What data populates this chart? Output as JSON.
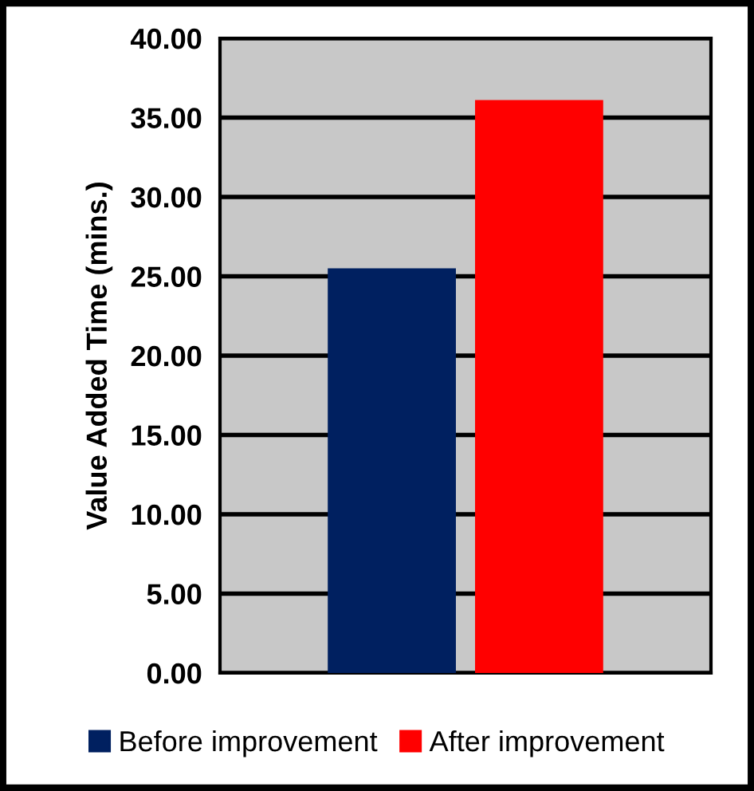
{
  "chart_data": {
    "type": "bar",
    "ylabel": "Value Added Time (mins.)",
    "categories": [
      null
    ],
    "series": [
      {
        "name": "Before improvement",
        "color": "#002060",
        "values": [
          25.5
        ]
      },
      {
        "name": "After improvement",
        "color": "#ff0000",
        "values": [
          36.1
        ]
      }
    ],
    "ylim": [
      0,
      40
    ],
    "yticks": [
      {
        "value": 0,
        "label": "0.00"
      },
      {
        "value": 5,
        "label": "5.00"
      },
      {
        "value": 10,
        "label": "10.00"
      },
      {
        "value": 15,
        "label": "15.00"
      },
      {
        "value": 20,
        "label": "20.00"
      },
      {
        "value": 25,
        "label": "25.00"
      },
      {
        "value": 30,
        "label": "30.00"
      },
      {
        "value": 35,
        "label": "35.00"
      },
      {
        "value": 40,
        "label": "40.00"
      }
    ],
    "grid": "y",
    "legend": "bottom"
  }
}
